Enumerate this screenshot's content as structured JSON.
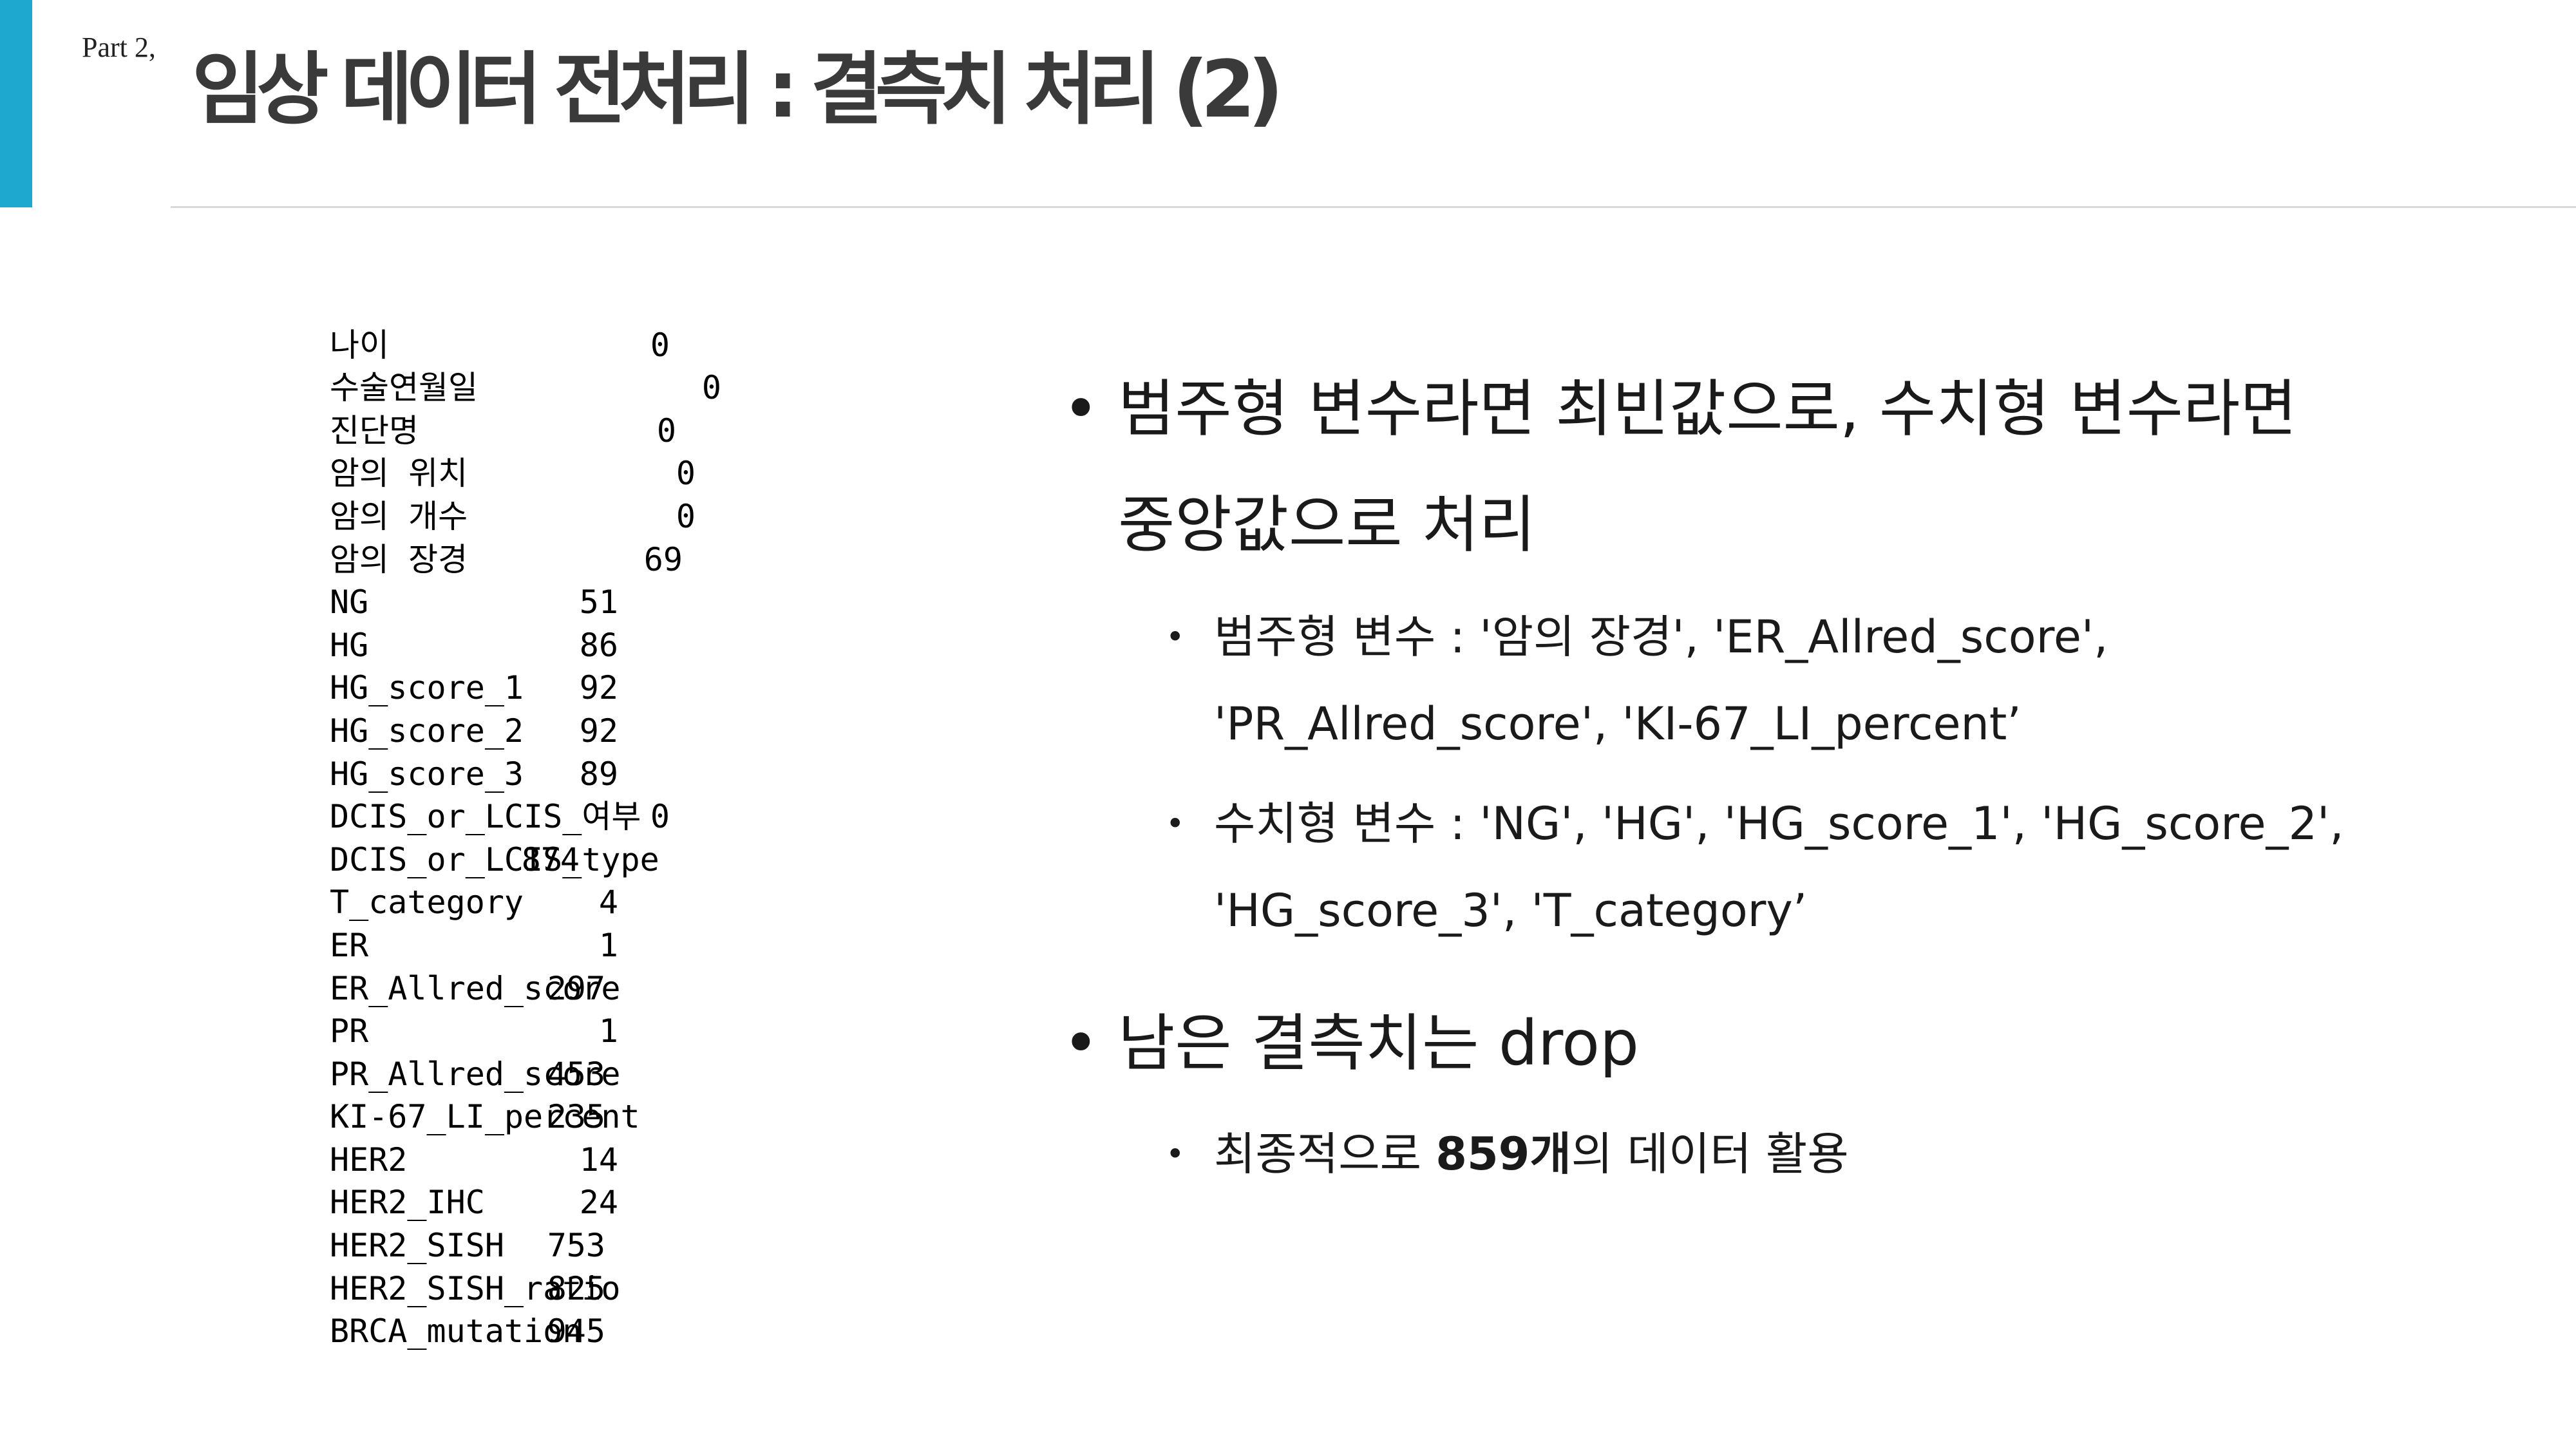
{
  "header": {
    "part_label": "Part 2,",
    "title": "임상 데이터 전처리 : 결측치 처리 (2)"
  },
  "colors": {
    "accent": "#1ea7cf",
    "title": "#3a3a3a",
    "rule": "#d9d9d9"
  },
  "missing_counts": [
    {
      "name": "나이",
      "count": "0"
    },
    {
      "name": "수술연월일",
      "count": "0"
    },
    {
      "name": "진단명",
      "count": "0"
    },
    {
      "name": "암의 위치",
      "count": "0"
    },
    {
      "name": "암의 개수",
      "count": "0"
    },
    {
      "name": "암의 장경",
      "count": "69"
    },
    {
      "name": "NG",
      "count": "51"
    },
    {
      "name": "HG",
      "count": "86"
    },
    {
      "name": "HG_score_1",
      "count": "92"
    },
    {
      "name": "HG_score_2",
      "count": "92"
    },
    {
      "name": "HG_score_3",
      "count": "89"
    },
    {
      "name": "DCIS_or_LCIS_여부",
      "count": "0"
    },
    {
      "name": "DCIS_or_LCIS_type",
      "count": "874"
    },
    {
      "name": "T_category",
      "count": "4"
    },
    {
      "name": "ER",
      "count": "1"
    },
    {
      "name": "ER_Allred_score",
      "count": "297"
    },
    {
      "name": "PR",
      "count": "1"
    },
    {
      "name": "PR_Allred_score",
      "count": "453"
    },
    {
      "name": "KI-67_LI_percent",
      "count": "235"
    },
    {
      "name": "HER2",
      "count": "14"
    },
    {
      "name": "HER2_IHC",
      "count": "24"
    },
    {
      "name": "HER2_SISH",
      "count": "753"
    },
    {
      "name": "HER2_SISH_ratio",
      "count": "825"
    },
    {
      "name": "BRCA_mutation",
      "count": "945"
    }
  ],
  "bullets": {
    "b1_line1": "범주형 변수라면 최빈값으로, 수치형 변수라면",
    "b1_line2": "중앙값으로 처리",
    "b1_sub1_line1": "범주형 변수 : '암의 장경', 'ER_Allred_score',",
    "b1_sub1_line2": "'PR_Allred_score', 'KI-67_LI_percent’",
    "b1_sub2_line1": "수치형 변수 : 'NG', 'HG', 'HG_score_1', 'HG_score_2',",
    "b1_sub2_line2": "'HG_score_3', 'T_category’",
    "b2": "남은 결측치는 drop",
    "b2_sub1_pre": "최종적으로 ",
    "b2_sub1_bold": "859개",
    "b2_sub1_post": "의 데이터 활용"
  }
}
